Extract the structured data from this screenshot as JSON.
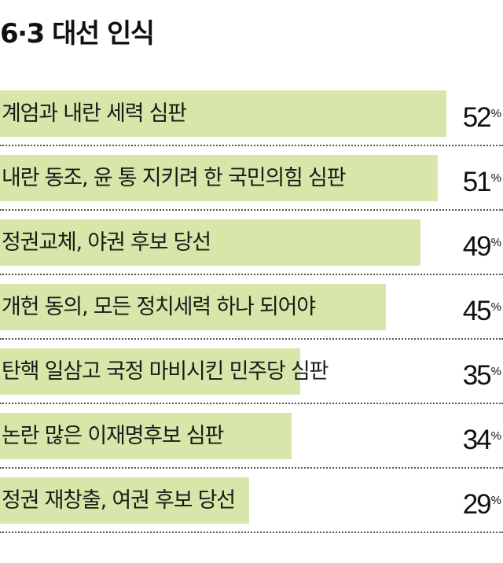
{
  "title": "6·3 대선 인식",
  "chart_data": {
    "type": "bar",
    "orientation": "horizontal",
    "title": "6·3 대선 인식",
    "unit": "%",
    "categories": [
      "계엄과 내란 세력 심판",
      "내란 동조, 윤 통 지키려 한 국민의힘 심판",
      "정권교체, 야권 후보 당선",
      "개헌 동의, 모든 정치세력 하나 되어야",
      "탄핵 일삼고 국정 마비시킨 민주당 심판",
      "논란 많은 이재명후보 심판",
      "정권 재창출, 여권 후보 당선"
    ],
    "values": [
      52,
      51,
      49,
      45,
      35,
      34,
      29
    ],
    "value_labels": [
      "52",
      "51",
      "49",
      "45",
      "35",
      "34",
      "29"
    ],
    "xlim": [
      0,
      58.6
    ],
    "bar_color": "#d7e7a9",
    "grid": false,
    "legend": "none"
  }
}
